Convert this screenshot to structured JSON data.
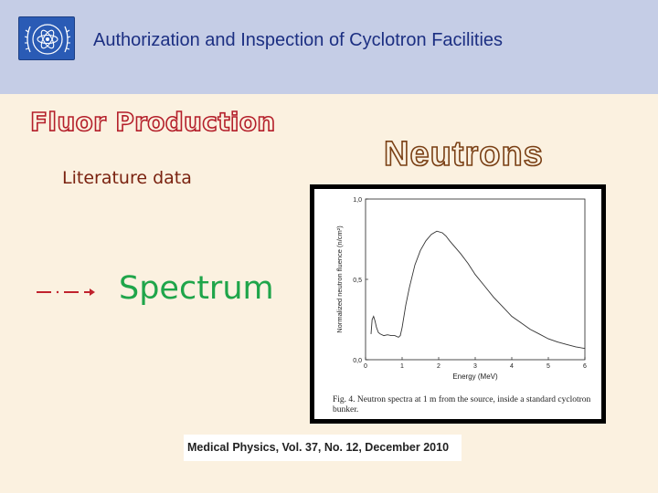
{
  "header": {
    "title": "Authorization and Inspection of Cyclotron Facilities",
    "logo_icon": "iaea-logo-icon",
    "bar_color": "#c5cde6",
    "title_color": "#1c2f82"
  },
  "left": {
    "heading": "Fluor Production",
    "subheading": "Literature data",
    "arrow_icon": "dash-dot-arrow-icon",
    "spectrum_label": "Spectrum",
    "heading_color": "#b41f2a",
    "spectrum_color": "#1fa54a"
  },
  "right": {
    "heading": "Neutrons",
    "caption": "Fig. 4. Neutron spectra at 1 m from the source, inside a standard cyclotron bunker.",
    "citation": "Medical Physics, Vol. 37, No. 12, December 2010"
  },
  "chart_data": {
    "type": "line",
    "title": "",
    "xlabel": "Energy (MeV)",
    "ylabel": "Normalized neutron fluence (n/cm²)",
    "xlim": [
      0,
      6
    ],
    "ylim": [
      0,
      1.0
    ],
    "xticks": [
      "0",
      "1",
      "2",
      "3",
      "4",
      "5",
      "6"
    ],
    "yticks": [
      "0,0",
      "0,5",
      "1,0"
    ],
    "grid": false,
    "series": [
      {
        "x": [
          0.15,
          0.18,
          0.22,
          0.26,
          0.3,
          0.35,
          0.4,
          0.5,
          0.6,
          0.7,
          0.8,
          0.9,
          0.95,
          1.0,
          1.1,
          1.2,
          1.35,
          1.5,
          1.65,
          1.8,
          1.95,
          2.1,
          2.2,
          2.3,
          2.45,
          2.6,
          2.8,
          3.0,
          3.25,
          3.5,
          3.75,
          4.0,
          4.25,
          4.5,
          4.75,
          5.0,
          5.25,
          5.5,
          5.75,
          6.0
        ],
        "y": [
          0.16,
          0.25,
          0.27,
          0.24,
          0.2,
          0.17,
          0.16,
          0.15,
          0.155,
          0.15,
          0.15,
          0.14,
          0.15,
          0.2,
          0.34,
          0.45,
          0.59,
          0.68,
          0.74,
          0.78,
          0.8,
          0.79,
          0.77,
          0.74,
          0.7,
          0.66,
          0.6,
          0.53,
          0.46,
          0.39,
          0.33,
          0.27,
          0.23,
          0.19,
          0.16,
          0.13,
          0.11,
          0.095,
          0.08,
          0.07
        ]
      }
    ]
  }
}
